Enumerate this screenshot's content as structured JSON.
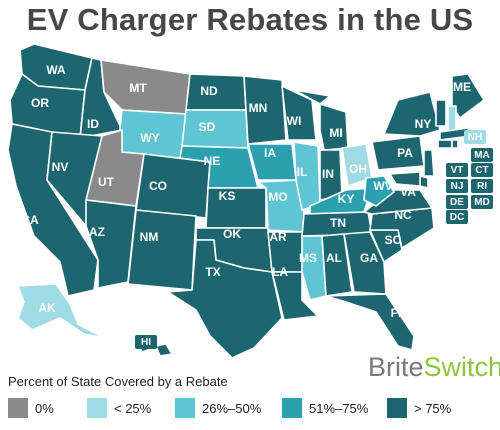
{
  "title": "EV Charger Rebates in the US",
  "brand": {
    "part1": "Brite",
    "part2": "Switch"
  },
  "legend": {
    "title": "Percent of State Covered by a Rebate",
    "items": [
      {
        "label": "0%",
        "color": "#8a8a8a"
      },
      {
        "label": "< 25%",
        "color": "#9fdbe4"
      },
      {
        "label": "26%–50%",
        "color": "#5fc5d4"
      },
      {
        "label": "51%–75%",
        "color": "#2ba0af"
      },
      {
        "label": "> 75%",
        "color": "#1d6670"
      }
    ]
  },
  "states": [
    {
      "code": "WA",
      "category": "> 75%"
    },
    {
      "code": "OR",
      "category": "> 75%"
    },
    {
      "code": "CA",
      "category": "> 75%"
    },
    {
      "code": "ID",
      "category": "> 75%"
    },
    {
      "code": "NV",
      "category": "> 75%"
    },
    {
      "code": "MT",
      "category": "0%"
    },
    {
      "code": "WY",
      "category": "26%–50%"
    },
    {
      "code": "UT",
      "category": "0%"
    },
    {
      "code": "AZ",
      "category": "> 75%"
    },
    {
      "code": "CO",
      "category": "> 75%"
    },
    {
      "code": "NM",
      "category": "> 75%"
    },
    {
      "code": "ND",
      "category": "> 75%"
    },
    {
      "code": "SD",
      "category": "26%–50%"
    },
    {
      "code": "NE",
      "category": "51%–75%"
    },
    {
      "code": "KS",
      "category": "> 75%"
    },
    {
      "code": "OK",
      "category": "> 75%"
    },
    {
      "code": "TX",
      "category": "> 75%"
    },
    {
      "code": "MN",
      "category": "> 75%"
    },
    {
      "code": "IA",
      "category": "51%–75%"
    },
    {
      "code": "MO",
      "category": "26%–50%"
    },
    {
      "code": "AR",
      "category": "> 75%"
    },
    {
      "code": "LA",
      "category": "> 75%"
    },
    {
      "code": "WI",
      "category": "> 75%"
    },
    {
      "code": "IL",
      "category": "26%–50%"
    },
    {
      "code": "MI",
      "category": "> 75%"
    },
    {
      "code": "IN",
      "category": "> 75%"
    },
    {
      "code": "OH",
      "category": "< 25%"
    },
    {
      "code": "KY",
      "category": "51%–75%"
    },
    {
      "code": "TN",
      "category": "> 75%"
    },
    {
      "code": "MS",
      "category": "26%–50%"
    },
    {
      "code": "AL",
      "category": "> 75%"
    },
    {
      "code": "GA",
      "category": "> 75%"
    },
    {
      "code": "FL",
      "category": "> 75%"
    },
    {
      "code": "SC",
      "category": "> 75%"
    },
    {
      "code": "NC",
      "category": "> 75%"
    },
    {
      "code": "VA",
      "category": "> 75%"
    },
    {
      "code": "WV",
      "category": "51%–75%"
    },
    {
      "code": "PA",
      "category": "> 75%"
    },
    {
      "code": "NY",
      "category": "> 75%"
    },
    {
      "code": "ME",
      "category": "> 75%"
    },
    {
      "code": "NH",
      "category": "< 25%"
    },
    {
      "code": "VT",
      "category": "> 75%"
    },
    {
      "code": "MA",
      "category": "> 75%"
    },
    {
      "code": "CT",
      "category": "> 75%"
    },
    {
      "code": "RI",
      "category": "> 75%"
    },
    {
      "code": "NJ",
      "category": "> 75%"
    },
    {
      "code": "DE",
      "category": "> 75%"
    },
    {
      "code": "MD",
      "category": "> 75%"
    },
    {
      "code": "DC",
      "category": "> 75%"
    },
    {
      "code": "AK",
      "category": "< 25%"
    },
    {
      "code": "HI",
      "category": "> 75%"
    }
  ]
}
